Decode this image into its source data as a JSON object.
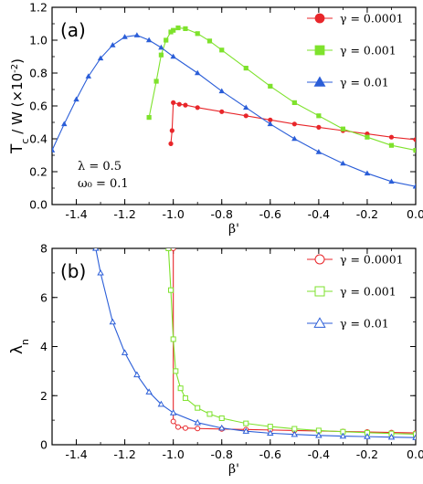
{
  "chart_data": [
    {
      "type": "line",
      "panel_label": "(a)",
      "ylabel": "T_c / W (×10^-2)",
      "ylabel_main": "T",
      "ylabel_sub": "c",
      "ylabel_rest": " / W  (×10",
      "ylabel_sup": "-2",
      "ylabel_close": ")",
      "xlabel": "β'",
      "xlim": [
        -1.5,
        0.0
      ],
      "ylim": [
        0.0,
        1.2
      ],
      "xticks": [
        "-1.4",
        "-1.2",
        "-1.0",
        "-0.8",
        "-0.6",
        "-0.4",
        "-0.2",
        "0.0"
      ],
      "xtick_values": [
        -1.4,
        -1.2,
        -1.0,
        -0.8,
        -0.6,
        -0.4,
        -0.2,
        0.0
      ],
      "yticks": [
        "0.0",
        "0.2",
        "0.4",
        "0.6",
        "0.8",
        "1.0",
        "1.2"
      ],
      "ytick_values": [
        0.0,
        0.2,
        0.4,
        0.6,
        0.8,
        1.0,
        1.2
      ],
      "legend_position": "top-right",
      "annotations": [
        {
          "text": "λ  = 0.5"
        },
        {
          "text": "ω₀ = 0.1"
        }
      ],
      "series": [
        {
          "name": "γ = 0.0001",
          "color": "#e8262a",
          "marker": "circle-filled",
          "x": [
            -1.01,
            -1.005,
            -1.0,
            -0.975,
            -0.95,
            -0.9,
            -0.8,
            -0.7,
            -0.6,
            -0.5,
            -0.4,
            -0.3,
            -0.2,
            -0.1,
            0.0
          ],
          "y": [
            0.37,
            0.45,
            0.62,
            0.61,
            0.605,
            0.59,
            0.565,
            0.54,
            0.515,
            0.49,
            0.47,
            0.45,
            0.43,
            0.41,
            0.395
          ]
        },
        {
          "name": "γ = 0.001",
          "color": "#7ee22c",
          "marker": "square-filled",
          "x": [
            -1.1,
            -1.07,
            -1.05,
            -1.03,
            -1.01,
            -1.0,
            -0.98,
            -0.95,
            -0.9,
            -0.85,
            -0.8,
            -0.7,
            -0.6,
            -0.5,
            -0.4,
            -0.3,
            -0.2,
            -0.1,
            0.0
          ],
          "y": [
            0.53,
            0.75,
            0.91,
            1.0,
            1.05,
            1.06,
            1.075,
            1.07,
            1.04,
            0.995,
            0.94,
            0.83,
            0.72,
            0.62,
            0.54,
            0.46,
            0.41,
            0.36,
            0.33
          ]
        },
        {
          "name": "γ = 0.01",
          "color": "#2b5ed8",
          "marker": "triangle-filled",
          "x": [
            -1.5,
            -1.45,
            -1.4,
            -1.35,
            -1.3,
            -1.25,
            -1.2,
            -1.15,
            -1.1,
            -1.05,
            -1.0,
            -0.9,
            -0.8,
            -0.7,
            -0.6,
            -0.5,
            -0.4,
            -0.3,
            -0.2,
            -0.1,
            0.0
          ],
          "y": [
            0.33,
            0.49,
            0.64,
            0.78,
            0.89,
            0.97,
            1.02,
            1.03,
            1.0,
            0.955,
            0.9,
            0.8,
            0.69,
            0.59,
            0.49,
            0.4,
            0.32,
            0.25,
            0.19,
            0.14,
            0.11
          ]
        }
      ]
    },
    {
      "type": "line",
      "panel_label": "(b)",
      "ylabel": "λ_n",
      "ylabel_main": "λ",
      "ylabel_sub": "n",
      "xlabel": "β'",
      "xlim": [
        -1.5,
        0.0
      ],
      "ylim": [
        0,
        8
      ],
      "xticks": [
        "-1.4",
        "-1.2",
        "-1.0",
        "-0.8",
        "-0.6",
        "-0.4",
        "-0.2",
        "0.0"
      ],
      "xtick_values": [
        -1.4,
        -1.2,
        -1.0,
        -0.8,
        -0.6,
        -0.4,
        -0.2,
        0.0
      ],
      "yticks": [
        "0",
        "2",
        "4",
        "6",
        "8"
      ],
      "ytick_values": [
        0,
        2,
        4,
        6,
        8
      ],
      "legend_position": "top-right",
      "series": [
        {
          "name": "γ = 0.0001",
          "color": "#e8262a",
          "marker": "circle-open",
          "x": [
            -1.0,
            -1.0,
            -0.98,
            -0.95,
            -0.9,
            -0.8,
            -0.7,
            -0.6,
            -0.5,
            -0.4,
            -0.3,
            -0.2,
            -0.1,
            0.0
          ],
          "y": [
            8.0,
            0.95,
            0.72,
            0.68,
            0.66,
            0.64,
            0.62,
            0.6,
            0.58,
            0.56,
            0.54,
            0.52,
            0.5,
            0.48
          ]
        },
        {
          "name": "γ = 0.001",
          "color": "#7ee22c",
          "marker": "square-open",
          "x": [
            -1.02,
            -1.01,
            -1.0,
            -0.99,
            -0.97,
            -0.95,
            -0.9,
            -0.85,
            -0.8,
            -0.7,
            -0.6,
            -0.5,
            -0.4,
            -0.3,
            -0.2,
            -0.1,
            0.0
          ],
          "y": [
            8.0,
            6.3,
            4.3,
            3.0,
            2.3,
            1.9,
            1.5,
            1.25,
            1.08,
            0.87,
            0.74,
            0.65,
            0.58,
            0.53,
            0.49,
            0.46,
            0.43
          ]
        },
        {
          "name": "γ = 0.01",
          "color": "#2b5ed8",
          "marker": "triangle-open",
          "x": [
            -1.32,
            -1.3,
            -1.25,
            -1.2,
            -1.15,
            -1.1,
            -1.05,
            -1.0,
            -0.9,
            -0.8,
            -0.7,
            -0.6,
            -0.5,
            -0.4,
            -0.3,
            -0.2,
            -0.1,
            0.0
          ],
          "y": [
            8.0,
            7.0,
            5.0,
            3.75,
            2.85,
            2.15,
            1.65,
            1.3,
            0.9,
            0.68,
            0.55,
            0.47,
            0.42,
            0.38,
            0.35,
            0.33,
            0.31,
            0.29
          ]
        }
      ]
    }
  ]
}
